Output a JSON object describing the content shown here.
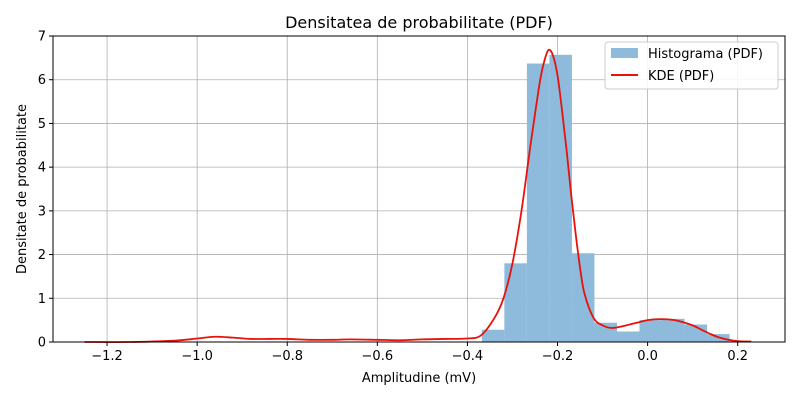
{
  "chart_data": {
    "type": "bar",
    "title": "Densitatea de probabilitate (PDF)",
    "xlabel": "Amplitudine (mV)",
    "ylabel": "Densitate de probabilitate",
    "xlim": [
      -1.32,
      0.305
    ],
    "ylim": [
      0,
      7
    ],
    "xticks": [
      -1.2,
      -1.0,
      -0.8,
      -0.6,
      -0.4,
      -0.2,
      0.0,
      0.2
    ],
    "xtick_labels": [
      "−1.2",
      "−1.0",
      "−0.8",
      "−0.6",
      "−0.4",
      "−0.2",
      "0.0",
      "0.2"
    ],
    "yticks": [
      0,
      1,
      2,
      3,
      4,
      5,
      6,
      7
    ],
    "ytick_labels": [
      "0",
      "1",
      "2",
      "3",
      "4",
      "5",
      "6",
      "7"
    ],
    "grid": true,
    "legend_position": "top-right",
    "series": [
      {
        "name": "Histograma (PDF)",
        "type": "histogram",
        "color": "#8ebadb",
        "bin_edges": [
          -0.368,
          -0.318,
          -0.268,
          -0.218,
          -0.168,
          -0.118,
          -0.068,
          -0.018,
          0.032,
          0.082,
          0.132,
          0.182
        ],
        "values": [
          0.28,
          1.8,
          6.37,
          6.57,
          2.03,
          0.44,
          0.24,
          0.5,
          0.53,
          0.4,
          0.18
        ]
      },
      {
        "name": "KDE (PDF)",
        "type": "line",
        "color": "#e8120c",
        "x": [
          -1.25,
          -1.15,
          -1.05,
          -1.0,
          -0.96,
          -0.92,
          -0.88,
          -0.84,
          -0.8,
          -0.75,
          -0.7,
          -0.66,
          -0.6,
          -0.55,
          -0.5,
          -0.45,
          -0.4,
          -0.37,
          -0.34,
          -0.32,
          -0.3,
          -0.28,
          -0.26,
          -0.24,
          -0.23,
          -0.22,
          -0.21,
          -0.2,
          -0.19,
          -0.18,
          -0.17,
          -0.16,
          -0.15,
          -0.14,
          -0.12,
          -0.1,
          -0.08,
          -0.06,
          -0.04,
          -0.02,
          0.0,
          0.02,
          0.04,
          0.06,
          0.08,
          0.1,
          0.12,
          0.14,
          0.16,
          0.18,
          0.2,
          0.23
        ],
        "y": [
          0.0,
          0.0,
          0.03,
          0.08,
          0.12,
          0.1,
          0.07,
          0.07,
          0.07,
          0.05,
          0.05,
          0.06,
          0.05,
          0.04,
          0.06,
          0.07,
          0.08,
          0.15,
          0.55,
          1.0,
          1.8,
          3.0,
          4.5,
          5.9,
          6.4,
          6.68,
          6.55,
          6.1,
          5.3,
          4.4,
          3.4,
          2.5,
          1.7,
          1.1,
          0.55,
          0.38,
          0.32,
          0.35,
          0.4,
          0.45,
          0.5,
          0.52,
          0.52,
          0.5,
          0.45,
          0.38,
          0.28,
          0.18,
          0.1,
          0.05,
          0.02,
          0.01
        ]
      }
    ]
  }
}
